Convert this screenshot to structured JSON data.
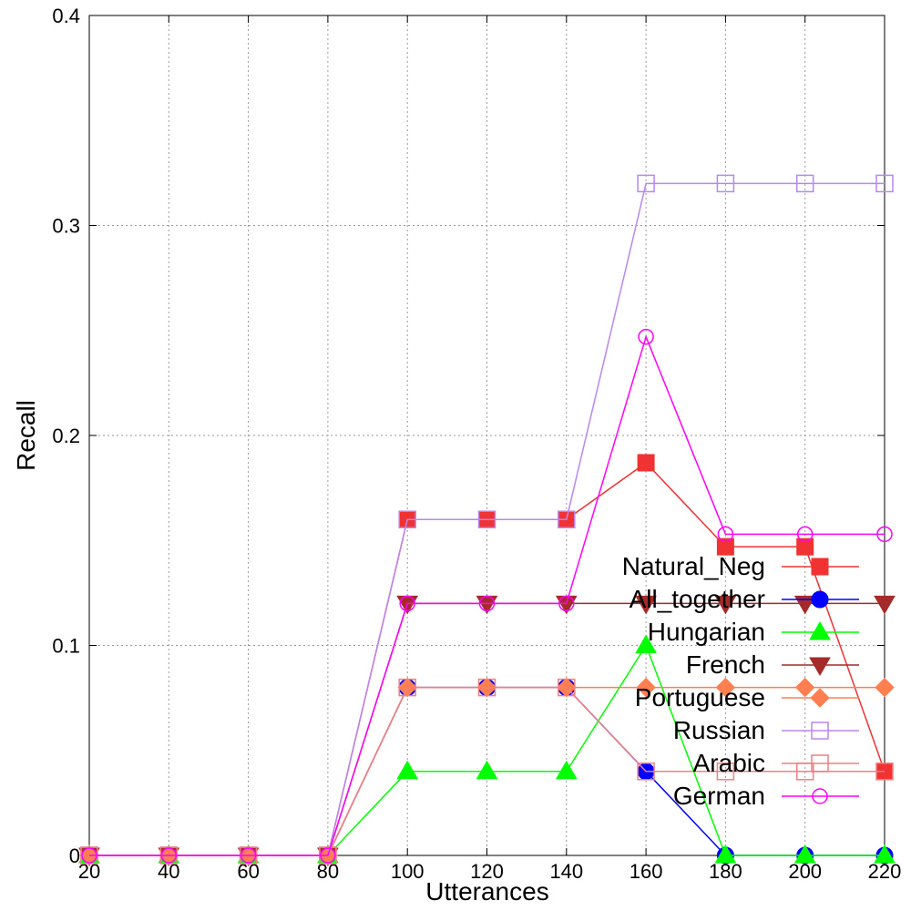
{
  "chart_data": {
    "type": "line",
    "title": "",
    "xlabel": "Utterances",
    "ylabel": "Recall",
    "xlim": [
      20,
      220
    ],
    "ylim": [
      0,
      0.4
    ],
    "x_ticks": [
      20,
      40,
      60,
      80,
      100,
      120,
      140,
      160,
      180,
      200,
      220
    ],
    "y_ticks": [
      0,
      0.1,
      0.2,
      0.3,
      0.4
    ],
    "y_tick_labels": [
      "0",
      "0.1",
      "0.2",
      "0.3",
      "0.4"
    ],
    "grid": true,
    "legend_position": "lower-right",
    "x": [
      20,
      40,
      60,
      80,
      100,
      120,
      140,
      160,
      180,
      200,
      220
    ],
    "series": [
      {
        "name": "Natural_Neg",
        "color": "#f03232",
        "marker": "square-filled",
        "values": [
          0,
          0,
          0,
          0,
          0.16,
          0.16,
          0.16,
          0.187,
          0.147,
          0.147,
          0.04
        ]
      },
      {
        "name": "All_together",
        "color": "#0000ff",
        "marker": "circle-filled",
        "values": [
          0,
          0,
          0,
          0,
          0.08,
          0.08,
          0.08,
          0.04,
          0,
          0,
          0
        ]
      },
      {
        "name": "Hungarian",
        "color": "#00ff00",
        "marker": "triangle-up-filled",
        "values": [
          0,
          0,
          0,
          0,
          0.04,
          0.04,
          0.04,
          0.1,
          0,
          0,
          0
        ]
      },
      {
        "name": "French",
        "color": "#a52a2a",
        "marker": "triangle-down-filled",
        "values": [
          0,
          0,
          0,
          0,
          0.12,
          0.12,
          0.12,
          0.12,
          0.12,
          0.12,
          0.12
        ]
      },
      {
        "name": "Portuguese",
        "color": "#ff7f50",
        "marker": "diamond-filled",
        "values": [
          0,
          0,
          0,
          0,
          0.08,
          0.08,
          0.08,
          0.08,
          0.08,
          0.08,
          0.08
        ]
      },
      {
        "name": "Russian",
        "color": "#b987f0",
        "marker": "square-open",
        "values": [
          0,
          0,
          0,
          0,
          0.16,
          0.16,
          0.16,
          0.32,
          0.32,
          0.32,
          0.32
        ]
      },
      {
        "name": "Arabic",
        "color": "#f08080",
        "marker": "square-open",
        "values": [
          0,
          0,
          0,
          0,
          0.08,
          0.08,
          0.08,
          0.04,
          0.04,
          0.04,
          0.04
        ]
      },
      {
        "name": "German",
        "color": "#ff00ff",
        "marker": "circle-open",
        "values": [
          0,
          0,
          0,
          0,
          0.12,
          0.12,
          0.12,
          0.247,
          0.153,
          0.153,
          0.153
        ]
      }
    ]
  }
}
